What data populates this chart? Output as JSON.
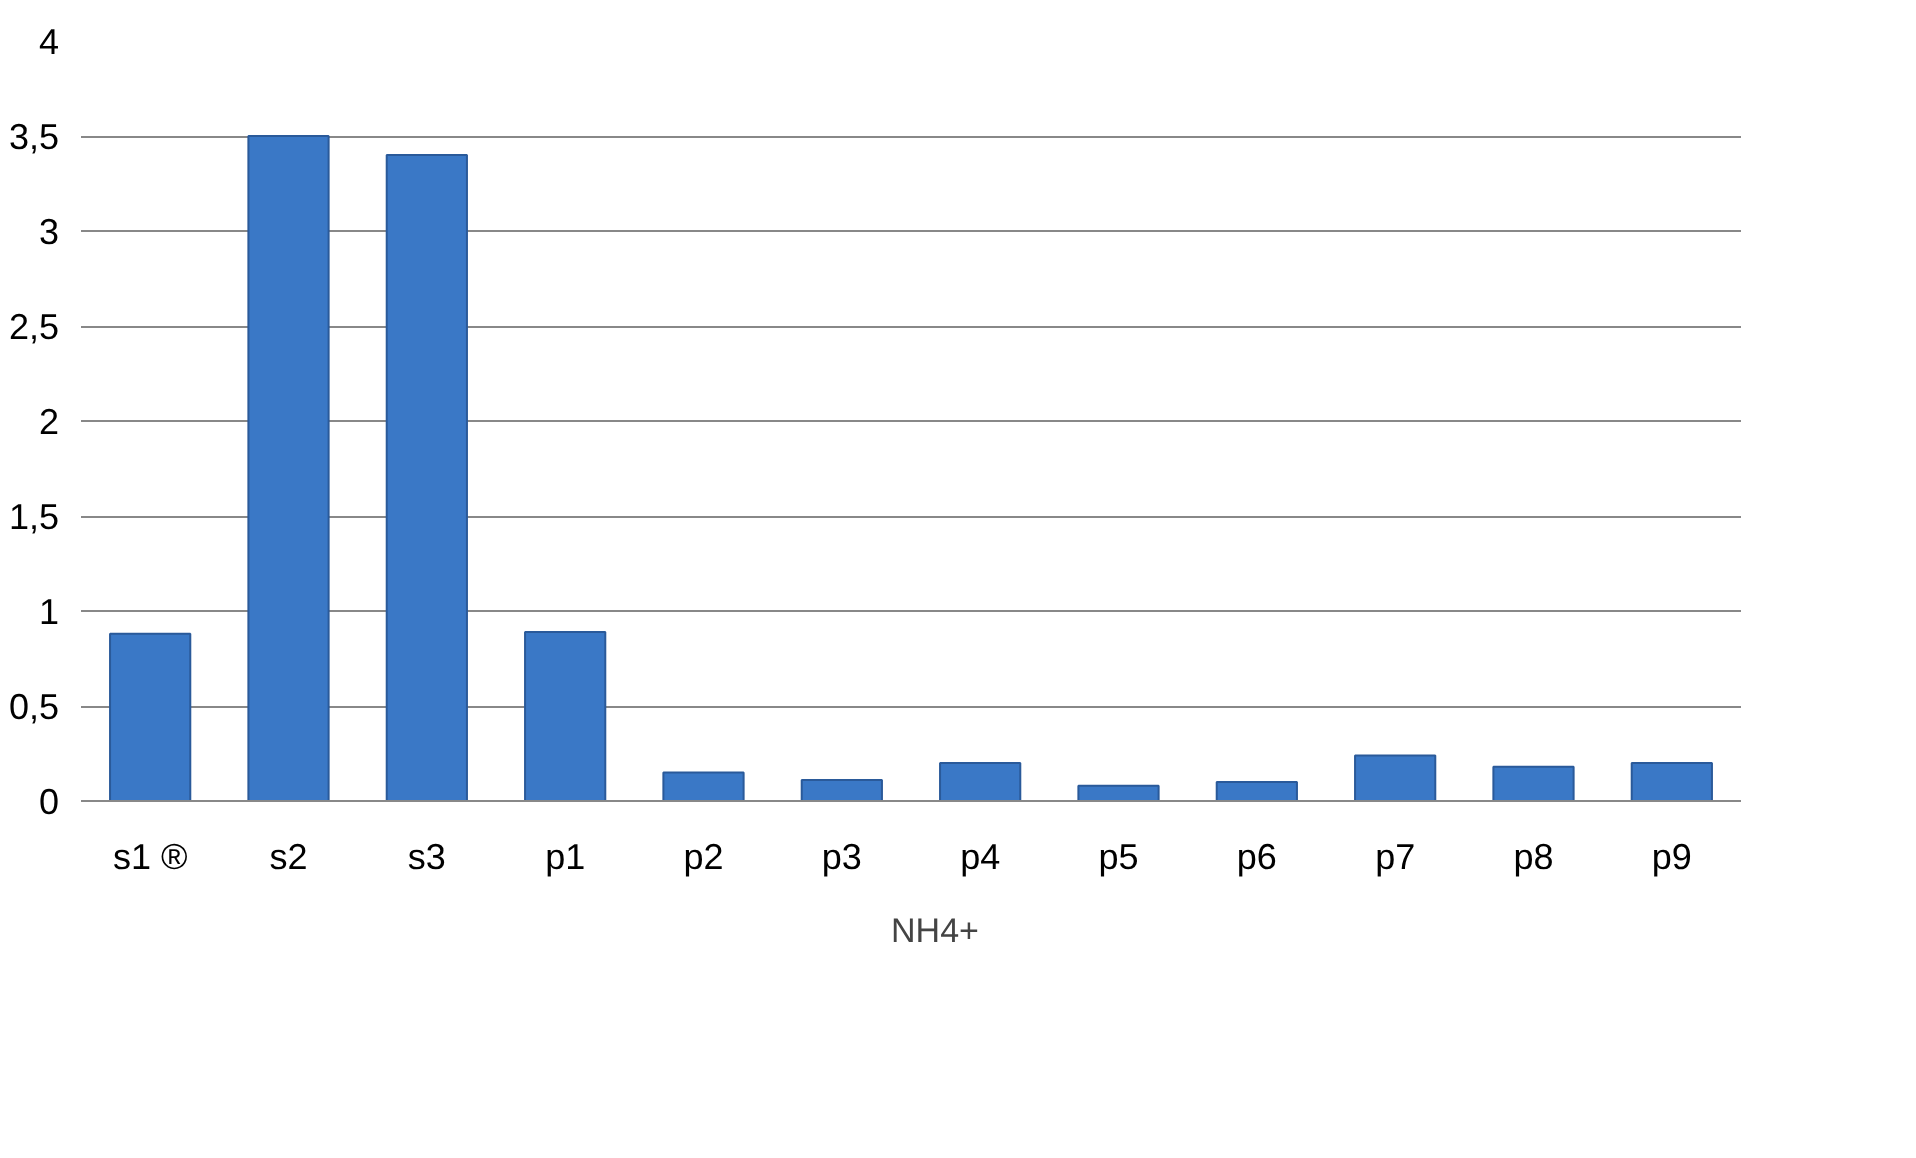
{
  "chart_data": {
    "type": "bar",
    "categories": [
      "s1 ®",
      "s2",
      "s3",
      "p1",
      "p2",
      "p3",
      "p4",
      "p5",
      "p6",
      "p7",
      "p8",
      "p9"
    ],
    "series": [
      {
        "name": "NH4+",
        "color": "#3a78c6",
        "values": [
          0.88,
          3.5,
          3.4,
          0.89,
          0.15,
          0.11,
          0.2,
          0.08,
          0.1,
          0.24,
          0.18,
          0.2
        ]
      }
    ],
    "ylim": [
      0,
      4
    ],
    "yticks": [
      {
        "value": 0,
        "label": "0"
      },
      {
        "value": 0.5,
        "label": "0,5"
      },
      {
        "value": 1,
        "label": "1"
      },
      {
        "value": 1.5,
        "label": "1,5"
      },
      {
        "value": 2,
        "label": "2"
      },
      {
        "value": 2.5,
        "label": "2,5"
      },
      {
        "value": 3,
        "label": "3"
      },
      {
        "value": 3.5,
        "label": "3,5"
      },
      {
        "value": 4,
        "label": "4"
      }
    ],
    "grid": "y",
    "legend": "bottom"
  }
}
